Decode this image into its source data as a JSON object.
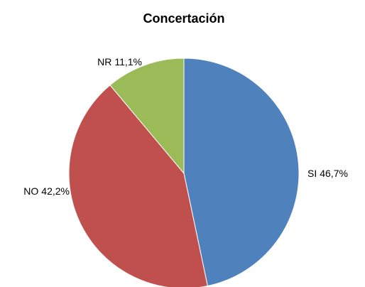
{
  "chart_data": {
    "type": "pie",
    "title": "Concertación",
    "categories": [
      "SI",
      "NO",
      "NR"
    ],
    "values": [
      46.7,
      42.2,
      11.1
    ],
    "value_labels": [
      "46,7%",
      "42,2%",
      "11,1%"
    ],
    "colors": [
      "#4f81bd",
      "#c0504d",
      "#9bbb59"
    ]
  }
}
